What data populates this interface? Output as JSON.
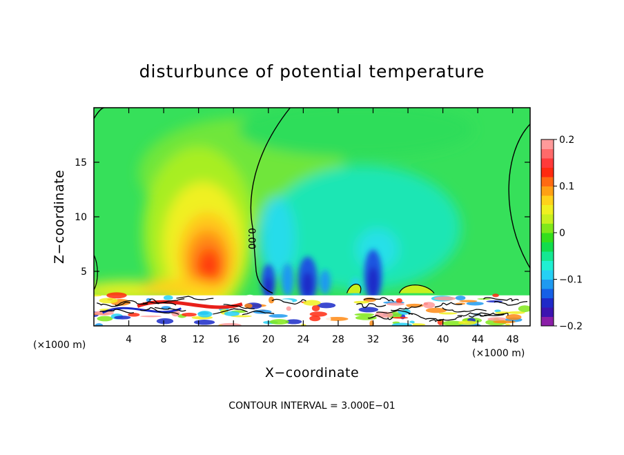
{
  "chart_data": {
    "type": "heatmap",
    "title": "disturbunce of potential temperature",
    "xlabel": "X−coordinate",
    "ylabel": "Z−coordinate",
    "x_unit": "(×1000 m)",
    "x_unit_right": "(×1000 m)",
    "xlim": [
      0,
      50
    ],
    "ylim": [
      0,
      20
    ],
    "x_ticks": [
      4,
      8,
      12,
      16,
      20,
      24,
      28,
      32,
      36,
      40,
      44,
      48
    ],
    "y_ticks": [
      5,
      10,
      15
    ],
    "x_tick_labels": [
      "4",
      "8",
      "12",
      "16",
      "20",
      "24",
      "28",
      "32",
      "36",
      "40",
      "44",
      "48"
    ],
    "y_tick_labels": [
      "5",
      "10",
      "15"
    ],
    "colorbar": {
      "range": [
        -0.2,
        0.2
      ],
      "ticks": [
        0.2,
        0.1,
        0,
        -0.1,
        -0.2
      ],
      "tick_labels": [
        "0.2",
        "0.1",
        "0",
        "−0.1",
        "−0.2"
      ],
      "colors": [
        "#8b1fa8",
        "#3c14b0",
        "#1f2ac8",
        "#1660e6",
        "#1f9af0",
        "#25d0f5",
        "#1ff0d2",
        "#15e892",
        "#12dd4c",
        "#33df1c",
        "#80e81a",
        "#c8f01e",
        "#f0f020",
        "#ffd21a",
        "#ffa014",
        "#ff6a12",
        "#ff2a10",
        "#ff3a3a",
        "#ff6a6a",
        "#ff9a9a"
      ]
    },
    "contour_label": "0.00",
    "footnote": "CONTOUR INTERVAL = 3.000E−01",
    "grid": false,
    "features": [
      {
        "kind": "warm-anomaly",
        "x": 13,
        "z": 6,
        "peak": 0.15
      },
      {
        "kind": "cool-region",
        "x": 32,
        "z": 8,
        "value": -0.05
      },
      {
        "kind": "cold-cores",
        "x": [
          20,
          25,
          32
        ],
        "z": 3.5,
        "value": -0.15
      },
      {
        "kind": "zero-contour",
        "from_x": 18,
        "to_x": 24
      }
    ]
  },
  "colors": {
    "background": "#ffffff",
    "frame": "#000000",
    "base_field": "#36e05a"
  }
}
